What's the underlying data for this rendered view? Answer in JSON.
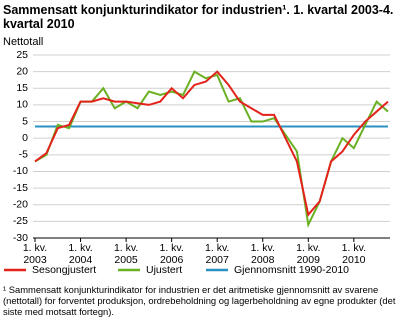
{
  "chart_data": {
    "type": "line",
    "title": "Sammensatt konjunkturindikator for industrien¹. 1. kvartal 2003-4. kvartal 2010",
    "y_label": "Nettotall",
    "footnote": "¹ Sammensatt konjunkturindikator for industrien er det aritmetiske gjennomsnitt av svarene (nettotall) for forventet produksjon, ordrebeholdning og lagerbeholdning av egne produkter (det siste med motsatt fortegn).",
    "categories": [
      "1. kv. 2003",
      null,
      null,
      null,
      "1. kv. 2004",
      null,
      null,
      null,
      "1. kv. 2005",
      null,
      null,
      null,
      "1. kv. 2006",
      null,
      null,
      null,
      "1. kv. 2007",
      null,
      null,
      null,
      "1. kv. 2008",
      null,
      null,
      null,
      "1. kv. 2009",
      null,
      null,
      null,
      "1. kv. 2010",
      null,
      null,
      null
    ],
    "series": [
      {
        "name": "Sesongjustert",
        "color": "#e3231b",
        "values": [
          -7,
          -4.5,
          3,
          4,
          11,
          11,
          12,
          11,
          11,
          10.5,
          10,
          11,
          15,
          12,
          16,
          17,
          20,
          16,
          11,
          9,
          7,
          7,
          0,
          -7,
          -23,
          -19,
          -7,
          -4,
          1,
          5,
          8,
          11
        ]
      },
      {
        "name": "Ujustert",
        "color": "#6ab023",
        "values": [
          -7,
          -5,
          4,
          3,
          11,
          11,
          15,
          9,
          11,
          9,
          14,
          13,
          14,
          13,
          20,
          18,
          19,
          11,
          12,
          5,
          5,
          6,
          1,
          -4,
          -26,
          -19,
          -7,
          0,
          -3,
          4,
          11,
          8
        ]
      },
      {
        "name": "Gjennomsnitt 1990-2010",
        "color": "#2a8fc1",
        "values": [
          3.5,
          3.5,
          3.5,
          3.5,
          3.5,
          3.5,
          3.5,
          3.5,
          3.5,
          3.5,
          3.5,
          3.5,
          3.5,
          3.5,
          3.5,
          3.5,
          3.5,
          3.5,
          3.5,
          3.5,
          3.5,
          3.5,
          3.5,
          3.5,
          3.5,
          3.5,
          3.5,
          3.5,
          3.5,
          3.5,
          3.5,
          3.5
        ]
      }
    ],
    "ylim": [
      -30,
      25
    ],
    "yticks": [
      -30,
      -25,
      -20,
      -15,
      -10,
      -5,
      0,
      5,
      10,
      15,
      20,
      25
    ],
    "grid": true
  }
}
